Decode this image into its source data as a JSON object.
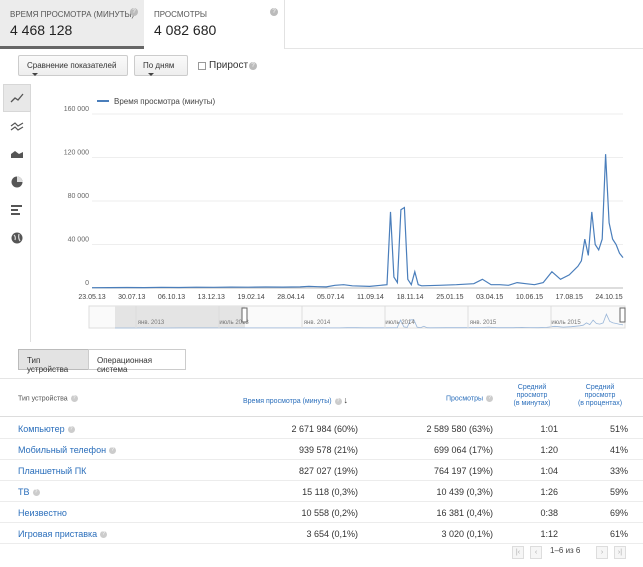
{
  "metrics": {
    "watch_time": {
      "label": "ВРЕМЯ ПРОСМОТРА (МИНУТЫ)",
      "value": "4 468 128"
    },
    "views": {
      "label": "ПРОСМОТРЫ",
      "value": "4 082 680"
    }
  },
  "controls": {
    "compare_label": "Сравнение показателей",
    "period_label": "По дням",
    "growth_label": "Прирост",
    "growth_checked": false
  },
  "side_icons": [
    "line-chart-icon",
    "multi-line-icon",
    "area-chart-icon",
    "pie-chart-icon",
    "bar-chart-icon",
    "globe-icon"
  ],
  "chart_data": {
    "type": "line",
    "legend": "Время просмотра (минуты)",
    "color": "#4a7ebb",
    "y_ticks": [
      "160 000",
      "120 000",
      "80 000",
      "40 000",
      "0"
    ],
    "ylim": [
      0,
      160000
    ],
    "x_ticks": [
      "23.05.13",
      "30.07.13",
      "06.10.13",
      "13.12.13",
      "19.02.14",
      "28.04.14",
      "05.07.14",
      "11.09.14",
      "18.11.14",
      "25.01.15",
      "03.04.15",
      "10.06.15",
      "17.08.15",
      "24.10.15"
    ],
    "navigator_labels": [
      "янв. 2013",
      "июль 2013",
      "янв. 2014",
      "июль 2014",
      "янв. 2015",
      "июль 2015"
    ],
    "x": [
      0,
      10,
      20,
      30,
      40,
      50,
      60,
      70,
      80,
      90,
      100,
      110,
      120,
      125,
      130,
      135,
      140,
      145,
      150,
      160,
      170,
      172,
      174,
      176,
      178,
      180,
      182,
      184,
      186,
      188,
      190,
      200,
      210,
      220,
      225,
      230,
      235,
      240,
      245,
      250,
      255,
      260,
      265,
      270,
      275,
      280,
      282,
      284,
      286,
      288,
      290,
      292,
      294,
      296,
      298,
      300,
      302,
      304,
      306
    ],
    "y": [
      300,
      400,
      500,
      400,
      600,
      500,
      700,
      600,
      800,
      700,
      900,
      800,
      1000,
      1500,
      1200,
      1000,
      2500,
      3000,
      2000,
      1500,
      3000,
      70000,
      10000,
      5000,
      72000,
      74000,
      8000,
      3000,
      15000,
      3000,
      2000,
      2500,
      3000,
      4000,
      8000,
      3000,
      3000,
      2500,
      5000,
      4000,
      3000,
      5000,
      15000,
      8000,
      12000,
      20000,
      25000,
      45000,
      30000,
      70000,
      40000,
      35000,
      45000,
      123000,
      60000,
      45000,
      40000,
      32000,
      28000
    ]
  },
  "tabs": [
    "Тип устройства",
    "Операционная система"
  ],
  "table": {
    "headers": {
      "device": "Тип устройства",
      "watch_time": "Время просмотра (минуты)",
      "sort_arrow": "↓",
      "views": "Просмотры",
      "avg_duration": [
        "Средний",
        "просмотр",
        "(в минутах)"
      ],
      "avg_percent": [
        "Средний",
        "просмотр",
        "(в процентах)"
      ]
    },
    "rows": [
      {
        "device": "Компьютер",
        "watch_time": "2 671 984 (60%)",
        "views": "2 589 580 (63%)",
        "avg_duration": "1:01",
        "avg_percent": "51%",
        "has_help": true
      },
      {
        "device": "Мобильный телефон",
        "watch_time": "939 578 (21%)",
        "views": "699 064 (17%)",
        "avg_duration": "1:20",
        "avg_percent": "41%",
        "has_help": true
      },
      {
        "device": "Планшетный ПК",
        "watch_time": "827 027 (19%)",
        "views": "764 197 (19%)",
        "avg_duration": "1:04",
        "avg_percent": "33%",
        "has_help": false
      },
      {
        "device": "ТВ",
        "watch_time": "15 118 (0,3%)",
        "views": "10 439 (0,3%)",
        "avg_duration": "1:26",
        "avg_percent": "59%",
        "has_help": true
      },
      {
        "device": "Неизвестно",
        "watch_time": "10 558 (0,2%)",
        "views": "16 381 (0,4%)",
        "avg_duration": "0:38",
        "avg_percent": "69%",
        "has_help": false
      },
      {
        "device": "Игровая приставка",
        "watch_time": "3 654 (0,1%)",
        "views": "3 020 (0,1%)",
        "avg_duration": "1:12",
        "avg_percent": "61%",
        "has_help": true
      }
    ],
    "pagination": "1–6 из 6"
  }
}
